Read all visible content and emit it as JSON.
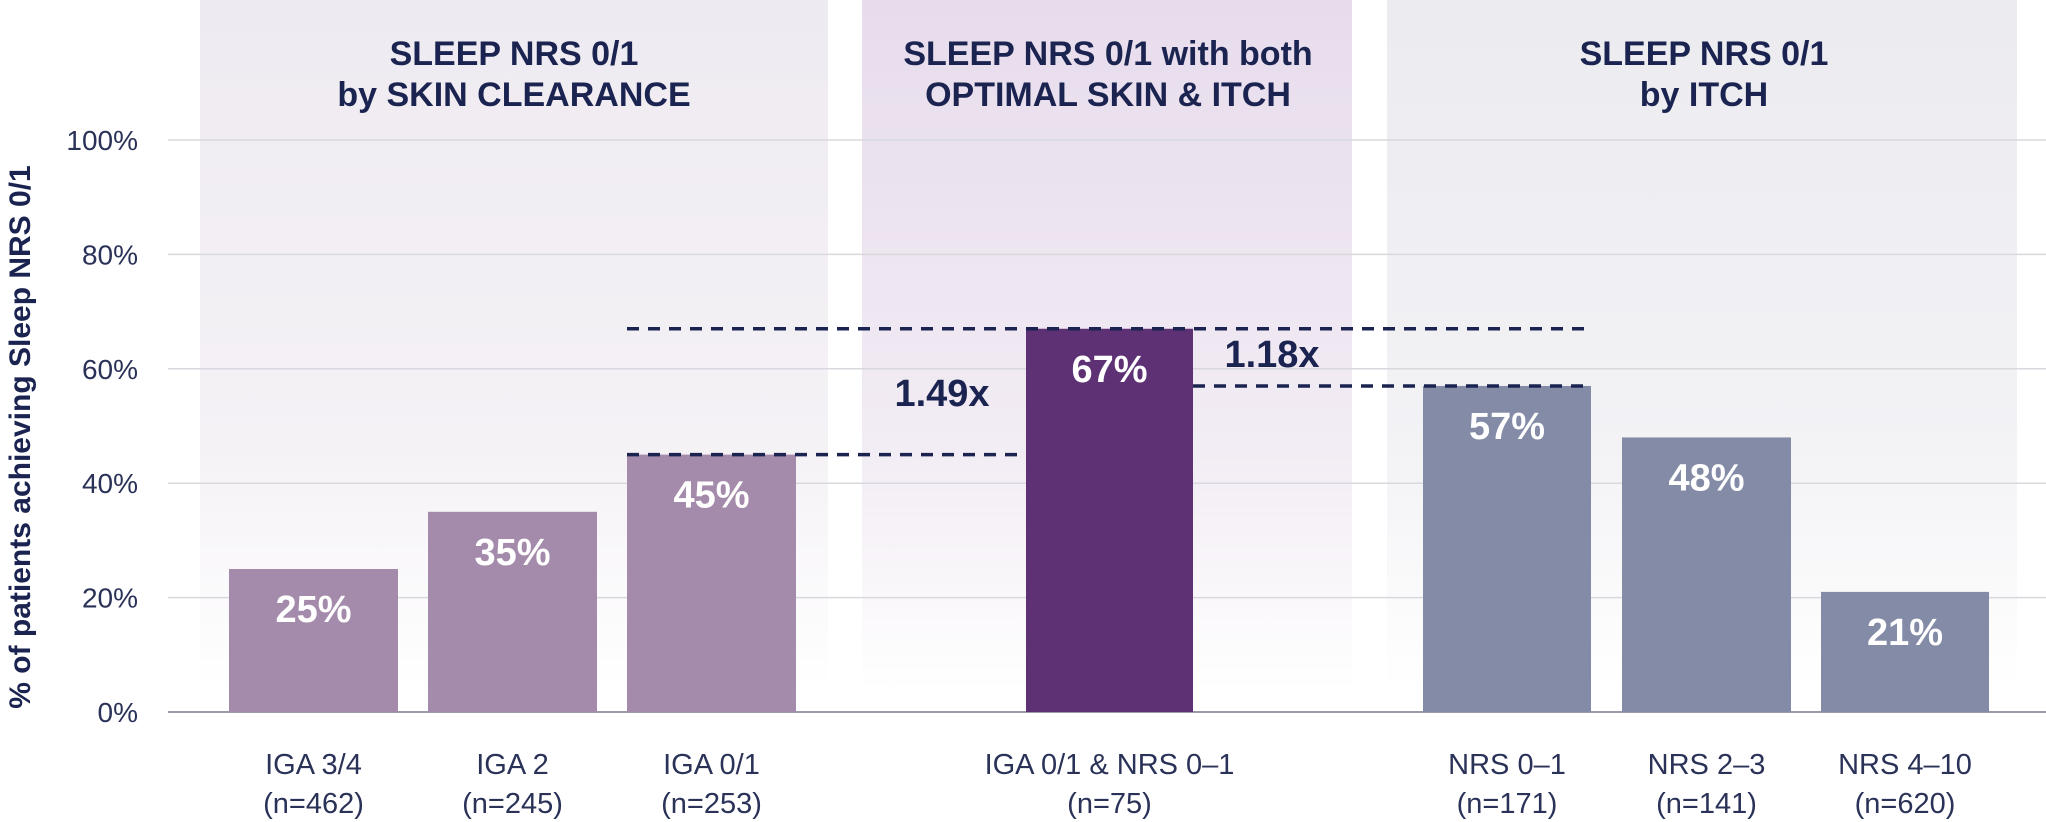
{
  "chart_data": {
    "type": "bar",
    "ylabel": "% of patients achieving Sleep NRS 0/1",
    "ylim": [
      0,
      100
    ],
    "yticks": [
      "0%",
      "20%",
      "40%",
      "60%",
      "80%",
      "100%"
    ],
    "grid": true,
    "groups": [
      {
        "title_line1": "SLEEP NRS 0/1",
        "title_line2": "by SKIN CLEARANCE",
        "bars": [
          {
            "label": "IGA 3/4",
            "n": "(n=462)",
            "value": 25,
            "display": "25%"
          },
          {
            "label": "IGA 2",
            "n": "(n=245)",
            "value": 35,
            "display": "35%"
          },
          {
            "label": "IGA 0/1",
            "n": "(n=253)",
            "value": 45,
            "display": "45%"
          }
        ]
      },
      {
        "title_line1": "SLEEP NRS 0/1 with both",
        "title_line2": "OPTIMAL SKIN & ITCH",
        "bars": [
          {
            "label": "IGA 0/1 & NRS 0–1",
            "n": "(n=75)",
            "value": 67,
            "display": "67%"
          }
        ]
      },
      {
        "title_line1": "SLEEP NRS 0/1",
        "title_line2": "by ITCH",
        "bars": [
          {
            "label": "NRS 0–1",
            "n": "(n=171)",
            "value": 57,
            "display": "57%"
          },
          {
            "label": "NRS 2–3",
            "n": "(n=141)",
            "value": 48,
            "display": "48%"
          },
          {
            "label": "NRS 4–10",
            "n": "(n=620)",
            "value": 21,
            "display": "21%"
          }
        ]
      }
    ],
    "annotations": [
      {
        "text": "1.49x",
        "from_value": 45,
        "to_value": 67
      },
      {
        "text": "1.18x",
        "from_value": 57,
        "to_value": 67
      }
    ],
    "colors": {
      "skin_bars": "#a58bab",
      "combined_bar": "#5d3173",
      "itch_bars": "#838ba6",
      "title_text": "#1b2450",
      "dashed_line": "#1b2450"
    }
  }
}
